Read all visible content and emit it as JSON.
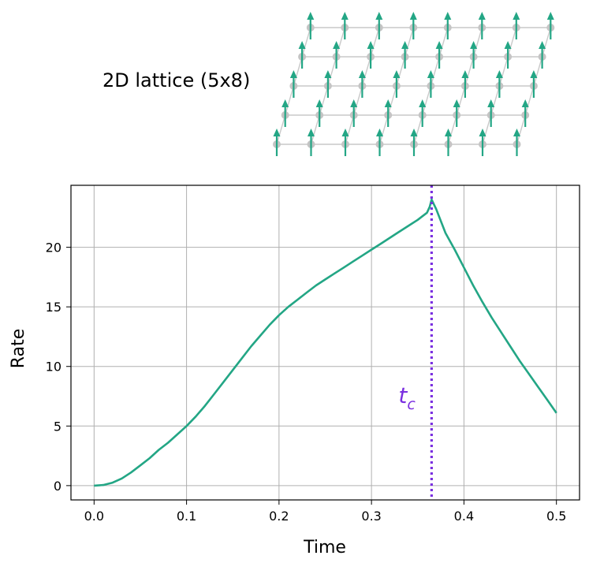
{
  "inset": {
    "title": "2D lattice (5x8)",
    "rows": 5,
    "cols": 8,
    "spin_direction": "up",
    "colors": {
      "site": "#c4c4c4",
      "bond": "#c9c9c9",
      "arrow": "#23a685"
    }
  },
  "chart_data": {
    "type": "line",
    "title": "",
    "xlabel": "Time",
    "ylabel": "Rate",
    "xlim": [
      -0.025,
      0.525
    ],
    "ylim": [
      -1.2,
      25.2
    ],
    "xticks": [
      0.0,
      0.1,
      0.2,
      0.3,
      0.4,
      0.5
    ],
    "xtick_labels": [
      "0.0",
      "0.1",
      "0.2",
      "0.3",
      "0.4",
      "0.5"
    ],
    "yticks": [
      0,
      5,
      10,
      15,
      20
    ],
    "ytick_labels": [
      "0",
      "5",
      "10",
      "15",
      "20"
    ],
    "grid": true,
    "series": [
      {
        "name": "rate",
        "color": "#23a685",
        "x": [
          0.0,
          0.01,
          0.02,
          0.03,
          0.04,
          0.05,
          0.06,
          0.07,
          0.08,
          0.09,
          0.1,
          0.11,
          0.12,
          0.13,
          0.14,
          0.15,
          0.16,
          0.17,
          0.18,
          0.19,
          0.2,
          0.21,
          0.22,
          0.23,
          0.24,
          0.25,
          0.26,
          0.27,
          0.28,
          0.29,
          0.3,
          0.31,
          0.32,
          0.33,
          0.34,
          0.35,
          0.355,
          0.36,
          0.363,
          0.365,
          0.37,
          0.375,
          0.38,
          0.39,
          0.4,
          0.41,
          0.42,
          0.43,
          0.44,
          0.45,
          0.46,
          0.47,
          0.48,
          0.49,
          0.5
        ],
        "y": [
          0.0,
          0.05,
          0.25,
          0.6,
          1.1,
          1.7,
          2.3,
          3.0,
          3.6,
          4.3,
          5.0,
          5.8,
          6.7,
          7.7,
          8.7,
          9.7,
          10.7,
          11.7,
          12.6,
          13.5,
          14.3,
          15.0,
          15.6,
          16.2,
          16.8,
          17.3,
          17.8,
          18.3,
          18.8,
          19.3,
          19.8,
          20.3,
          20.8,
          21.3,
          21.8,
          22.3,
          22.6,
          22.9,
          23.4,
          24.0,
          23.2,
          22.2,
          21.2,
          19.8,
          18.3,
          16.8,
          15.4,
          14.1,
          12.9,
          11.7,
          10.5,
          9.4,
          8.3,
          7.2,
          6.1
        ]
      }
    ],
    "vline": {
      "x": 0.365,
      "label_main": "t",
      "label_sub": "c",
      "color": "#7a2fe0",
      "style": "dotted"
    }
  }
}
